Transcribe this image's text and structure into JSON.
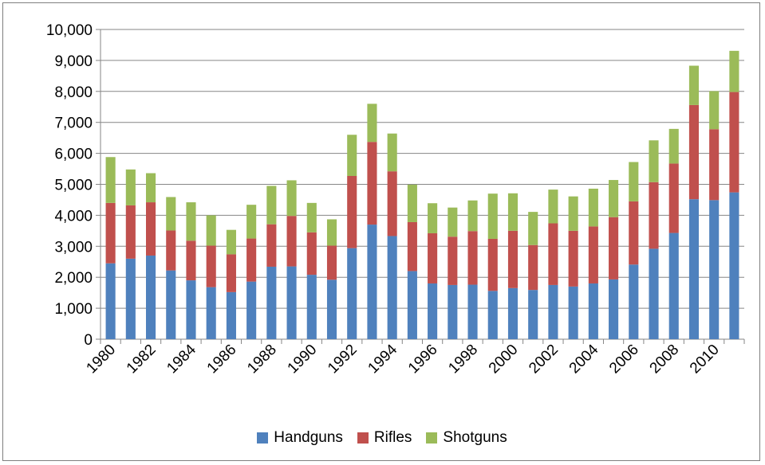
{
  "chart_data": {
    "type": "bar",
    "stacked": true,
    "categories": [
      "1980",
      "1981",
      "1982",
      "1983",
      "1984",
      "1985",
      "1986",
      "1987",
      "1988",
      "1989",
      "1990",
      "1991",
      "1992",
      "1993",
      "1994",
      "1995",
      "1996",
      "1997",
      "1998",
      "1999",
      "2000",
      "2001",
      "2002",
      "2003",
      "2004",
      "2005",
      "2006",
      "2007",
      "2008",
      "2009",
      "2010",
      "2011"
    ],
    "x_tick_labels": [
      "1980",
      "1982",
      "1984",
      "1986",
      "1988",
      "1990",
      "1992",
      "1994",
      "1996",
      "1998",
      "2000",
      "2002",
      "2004",
      "2006",
      "2008",
      "2010"
    ],
    "series": [
      {
        "name": "Handguns",
        "color": "#4f81bd",
        "values": [
          2450,
          2600,
          2700,
          2220,
          1900,
          1680,
          1520,
          1860,
          2340,
          2350,
          2080,
          1920,
          2940,
          3700,
          3330,
          2200,
          1800,
          1750,
          1760,
          1560,
          1650,
          1590,
          1750,
          1700,
          1800,
          1930,
          2410,
          2920,
          3430,
          4520,
          4490,
          4740
        ]
      },
      {
        "name": "Rifles",
        "color": "#c0504d",
        "values": [
          1950,
          1720,
          1720,
          1290,
          1280,
          1340,
          1220,
          1390,
          1370,
          1630,
          1370,
          1100,
          2330,
          2670,
          2090,
          1580,
          1620,
          1560,
          1730,
          1680,
          1850,
          1450,
          1990,
          1800,
          1840,
          2010,
          2040,
          2150,
          2240,
          3040,
          2290,
          3240
        ]
      },
      {
        "name": "Shotguns",
        "color": "#9bbb59",
        "values": [
          1480,
          1160,
          940,
          1080,
          1240,
          980,
          790,
          1090,
          1240,
          1150,
          950,
          850,
          1330,
          1230,
          1220,
          1210,
          970,
          940,
          990,
          1460,
          1210,
          1070,
          1090,
          1110,
          1220,
          1200,
          1270,
          1350,
          1120,
          1270,
          1230,
          1330
        ]
      }
    ],
    "y_tick_labels": [
      "0",
      "1,000",
      "2,000",
      "3,000",
      "4,000",
      "5,000",
      "6,000",
      "7,000",
      "8,000",
      "9,000",
      "10,000"
    ],
    "ylim": [
      0,
      10000
    ],
    "xlabel": "",
    "ylabel": "",
    "title": "",
    "grid": true,
    "legend_position": "bottom"
  }
}
